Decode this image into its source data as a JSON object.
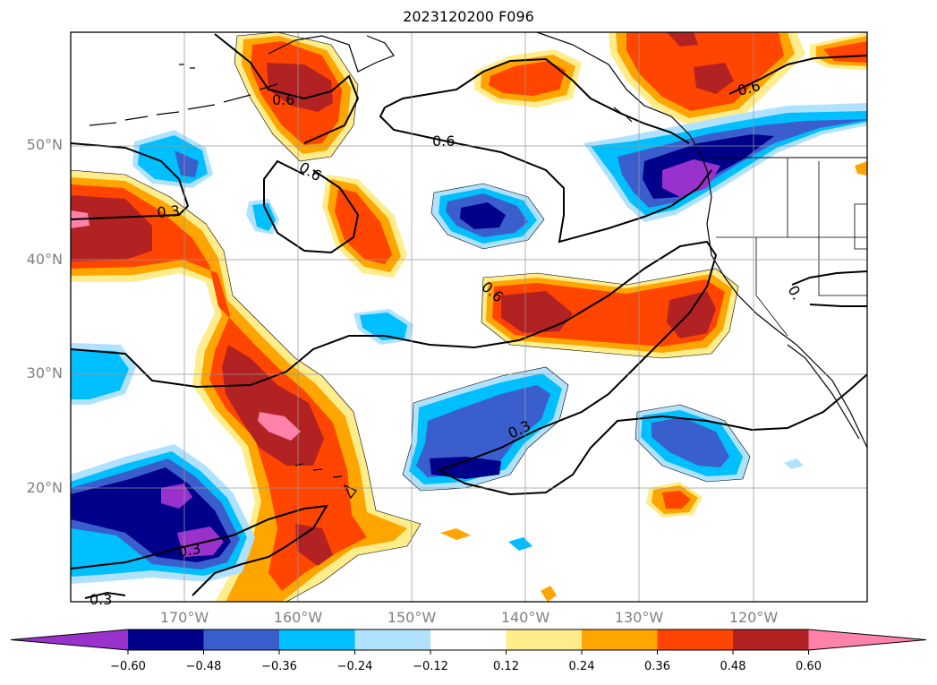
{
  "title": "2023120200 F096",
  "lat_labels": [
    "50°N",
    "40°N",
    "30°N",
    "20°N"
  ],
  "lon_labels": [
    "170°W",
    "160°W",
    "150°W",
    "140°W",
    "130°W",
    "120°W"
  ],
  "contour_labels": [
    "0.6",
    "0.6",
    "0.6",
    "0.6",
    "0.3",
    "0.6",
    "0.3",
    "0.3",
    "0.3",
    "0.6",
    "0."
  ],
  "colorbar": {
    "ticks": [
      "−0.60",
      "−0.48",
      "−0.36",
      "−0.24",
      "−0.12",
      "0.12",
      "0.24",
      "0.36",
      "0.48",
      "0.60"
    ],
    "colors": [
      "#9932cc",
      "#00008b",
      "#3a5fcd",
      "#00bfff",
      "#b0e2ff",
      "#ffffff",
      "#ffec8b",
      "#ffa500",
      "#ff4500",
      "#b22222",
      "#ff82ab"
    ]
  },
  "map_meta": {
    "lat_range": [
      10,
      60
    ],
    "lon_range": [
      -180,
      -110
    ],
    "grid": true
  }
}
